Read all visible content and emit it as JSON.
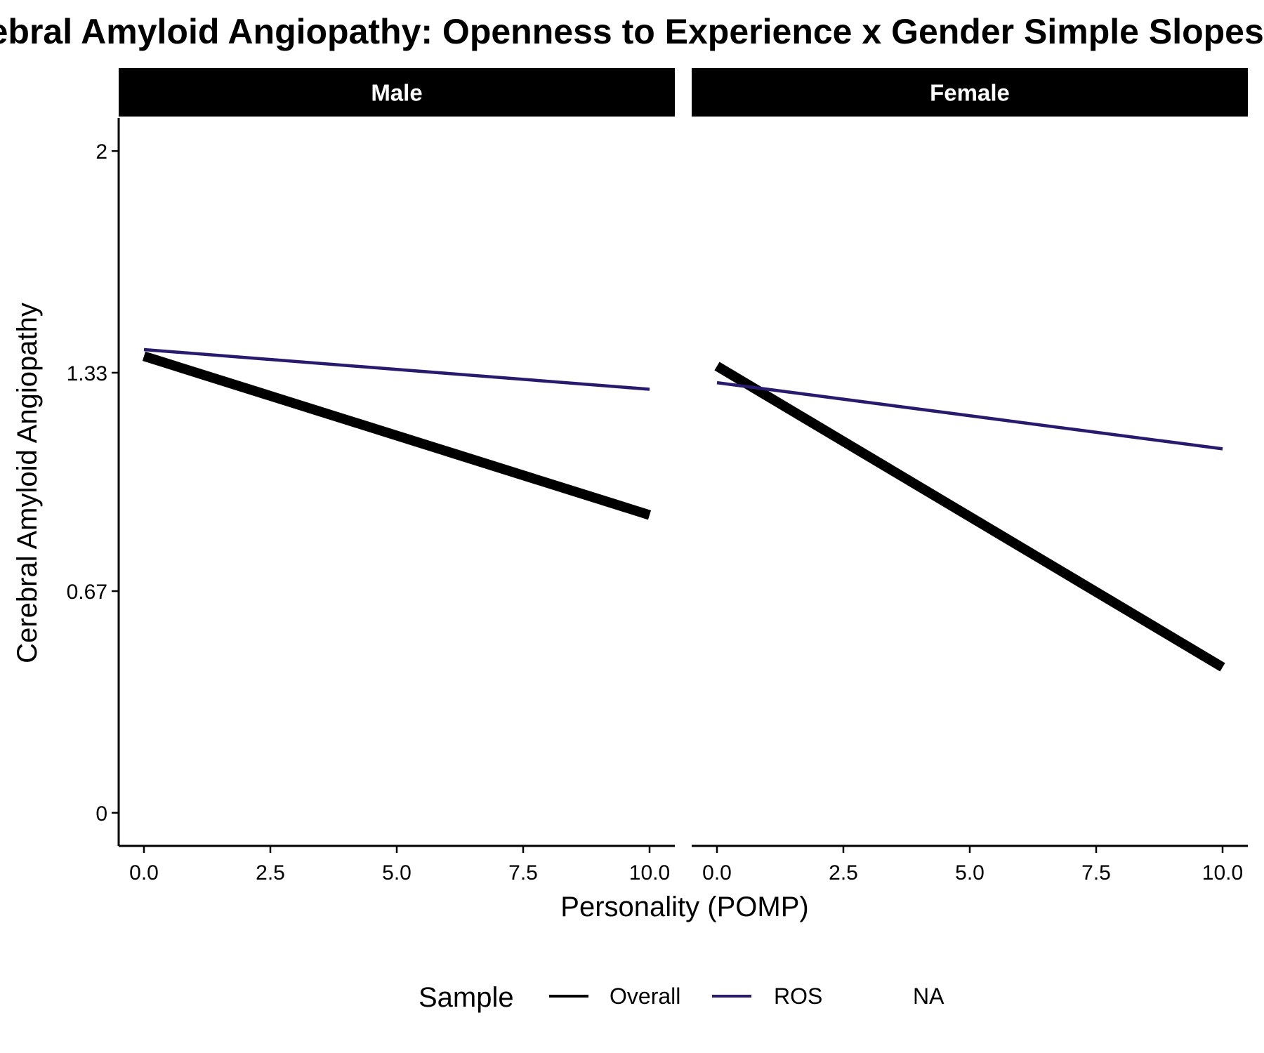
{
  "chart_data": {
    "type": "line",
    "title": "Cerebral Amyloid Angiopathy: Openness to Experience x Gender Simple Slopes",
    "xlabel": "Personality (POMP)",
    "ylabel": "Cerebral Amyloid Angiopathy",
    "xlim": [
      -0.5,
      10.5
    ],
    "ylim": [
      -0.1,
      2.1
    ],
    "x_ticks": [
      "0.0",
      "2.5",
      "5.0",
      "7.5",
      "10.0"
    ],
    "x_tick_values": [
      0,
      2.5,
      5,
      7.5,
      10
    ],
    "y_ticks": [
      "0",
      "0.67",
      "1.33",
      "2"
    ],
    "y_tick_values": [
      0,
      0.67,
      1.33,
      2
    ],
    "grid": false,
    "legend": {
      "title": "Sample",
      "position": "bottom",
      "entries": [
        {
          "label": "Overall",
          "color": "#000000"
        },
        {
          "label": "ROS",
          "color": "#2a1a6e"
        },
        {
          "label": "NA",
          "color": null
        }
      ]
    },
    "panels": [
      {
        "label": "Male",
        "series": [
          {
            "sample": "Overall",
            "color": "#000000",
            "x": [
              0,
              10
            ],
            "y": [
              1.38,
              0.9
            ]
          },
          {
            "sample": "ROS",
            "color": "#2a1a6e",
            "x": [
              0,
              10
            ],
            "y": [
              1.4,
              1.28
            ]
          }
        ]
      },
      {
        "label": "Female",
        "series": [
          {
            "sample": "Overall",
            "color": "#000000",
            "x": [
              0,
              10
            ],
            "y": [
              1.35,
              0.44
            ]
          },
          {
            "sample": "ROS",
            "color": "#2a1a6e",
            "x": [
              0,
              10
            ],
            "y": [
              1.3,
              1.1
            ]
          }
        ]
      }
    ]
  }
}
